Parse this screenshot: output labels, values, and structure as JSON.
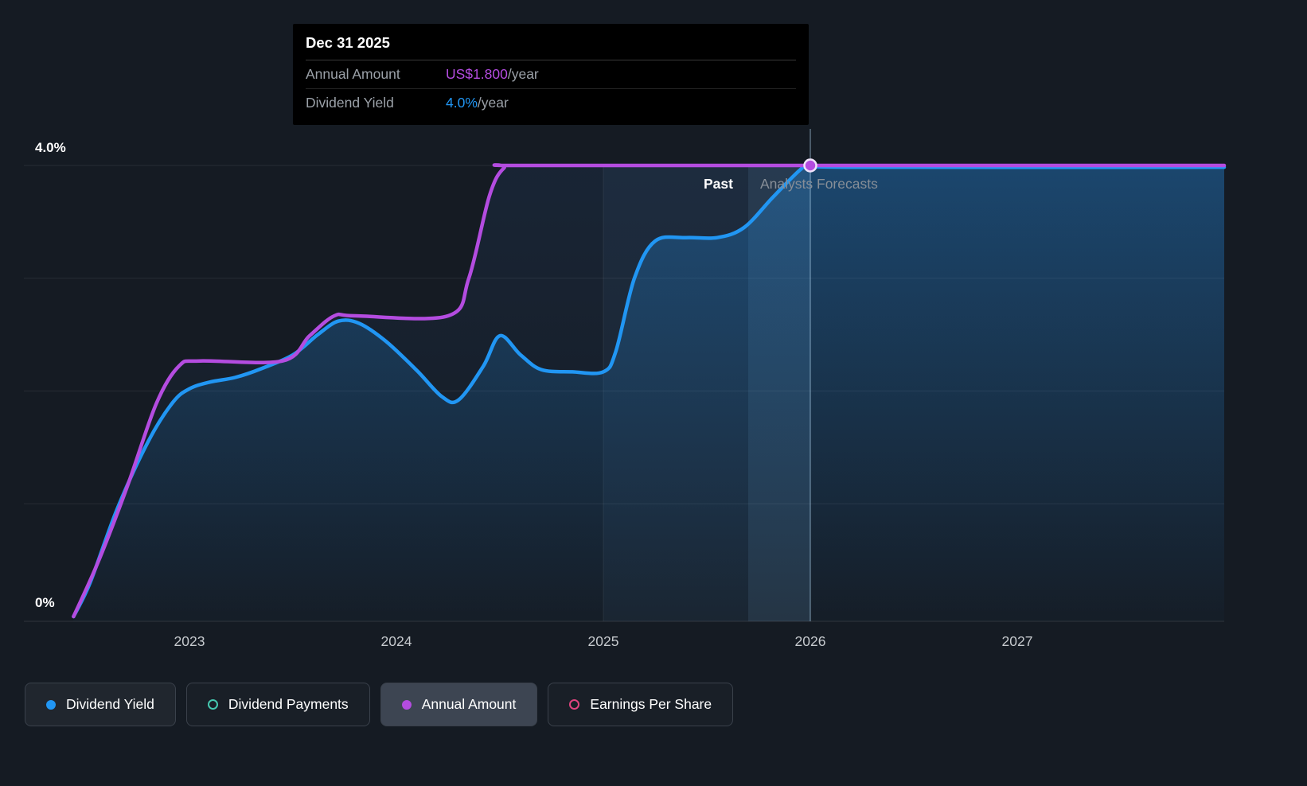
{
  "colors": {
    "background": "#151b23",
    "tooltip_background": "#000000",
    "grid_line": "rgba(255,255,255,0.08)",
    "axis_line": "rgba(255,255,255,0.12)",
    "axis_text": "#c6cace",
    "muted_text": "#878e97",
    "dividend_yield": "#2196f3",
    "annual_amount": "#b44ce0",
    "dividend_payments": "#45c8b0",
    "earnings_per_share": "#e0447f",
    "divider_line": "rgba(180,215,240,0.45)",
    "past_edge_line": "rgba(255,255,255,0.07)",
    "highlight_band": "rgba(120,180,230,0.055)",
    "hover_band": "rgba(140,195,240,0.10)",
    "marker_ring": "#f0e4fa"
  },
  "tooltip": {
    "title": "Dec 31 2025",
    "rows": [
      {
        "label": "Annual Amount",
        "value": "US$1.800",
        "suffix": "/year",
        "color_key": "annual_amount"
      },
      {
        "label": "Dividend Yield",
        "value": "4.0%",
        "suffix": "/year",
        "color_key": "dividend_yield"
      }
    ]
  },
  "annotations": {
    "past_label": "Past",
    "forecast_label": "Analysts Forecasts"
  },
  "axes": {
    "y_top_label": "4.0%",
    "y_bottom_label": "0%",
    "x_ticks": [
      "2023",
      "2024",
      "2025",
      "2026",
      "2027"
    ]
  },
  "legend": {
    "items": [
      {
        "label": "Dividend Yield",
        "marker": "filled",
        "color_key": "dividend_yield",
        "active": true,
        "hovered": false
      },
      {
        "label": "Dividend Payments",
        "marker": "outline",
        "color_key": "dividend_payments",
        "active": false,
        "hovered": false
      },
      {
        "label": "Annual Amount",
        "marker": "filled",
        "color_key": "annual_amount",
        "active": true,
        "hovered": true
      },
      {
        "label": "Earnings Per Share",
        "marker": "outline",
        "color_key": "earnings_per_share",
        "active": false,
        "hovered": false
      }
    ]
  },
  "chart_data": {
    "type": "line",
    "title": "Dividend history and forecast",
    "x_range": [
      2022.2,
      2028.0
    ],
    "x_tick_values": [
      2023,
      2024,
      2025,
      2026,
      2027
    ],
    "y_range_percent": [
      0,
      4.0
    ],
    "grid_percent_lines": [
      1.0,
      2.0,
      3.0,
      4.0
    ],
    "divider_x": 2026.0,
    "highlight_band_x": [
      2025.0,
      2026.0
    ],
    "hover_band_x": [
      2025.7,
      2026.0
    ],
    "marker": {
      "x": 2026.0,
      "y_percent": 4.0,
      "series": "annual_amount"
    },
    "amount_axis_alignment": {
      "amount_value": 1.8,
      "maps_to_percent": 4.0
    },
    "series": [
      {
        "name": "Dividend Yield",
        "key": "dividend_yield",
        "unit": "percent",
        "area_fill": "strong",
        "points": [
          [
            2022.44,
            0.0
          ],
          [
            2022.52,
            0.3
          ],
          [
            2022.65,
            0.95
          ],
          [
            2022.8,
            1.55
          ],
          [
            2022.92,
            1.9
          ],
          [
            2023.0,
            2.02
          ],
          [
            2023.1,
            2.08
          ],
          [
            2023.22,
            2.12
          ],
          [
            2023.35,
            2.2
          ],
          [
            2023.5,
            2.32
          ],
          [
            2023.62,
            2.5
          ],
          [
            2023.72,
            2.62
          ],
          [
            2023.82,
            2.6
          ],
          [
            2023.95,
            2.44
          ],
          [
            2024.1,
            2.18
          ],
          [
            2024.22,
            1.95
          ],
          [
            2024.3,
            1.92
          ],
          [
            2024.42,
            2.22
          ],
          [
            2024.5,
            2.49
          ],
          [
            2024.6,
            2.32
          ],
          [
            2024.7,
            2.19
          ],
          [
            2024.85,
            2.17
          ],
          [
            2025.0,
            2.17
          ],
          [
            2025.06,
            2.35
          ],
          [
            2025.15,
            3.0
          ],
          [
            2025.25,
            3.33
          ],
          [
            2025.4,
            3.36
          ],
          [
            2025.55,
            3.36
          ],
          [
            2025.68,
            3.45
          ],
          [
            2025.82,
            3.72
          ],
          [
            2025.95,
            3.96
          ],
          [
            2026.0,
            4.0
          ],
          [
            2026.2,
            3.985
          ],
          [
            2028.0,
            3.985
          ]
        ]
      },
      {
        "name": "Annual Amount",
        "key": "annual_amount",
        "unit": "usd_per_year",
        "area_fill": "faint",
        "points": [
          [
            2022.44,
            0.0
          ],
          [
            2022.56,
            0.22
          ],
          [
            2022.7,
            0.52
          ],
          [
            2022.84,
            0.85
          ],
          [
            2022.95,
            1.0
          ],
          [
            2023.05,
            1.02
          ],
          [
            2023.45,
            1.02
          ],
          [
            2023.58,
            1.12
          ],
          [
            2023.7,
            1.2
          ],
          [
            2023.8,
            1.2
          ],
          [
            2024.25,
            1.2
          ],
          [
            2024.35,
            1.35
          ],
          [
            2024.45,
            1.68
          ],
          [
            2024.52,
            1.79
          ],
          [
            2024.6,
            1.8
          ],
          [
            2026.0,
            1.8
          ],
          [
            2028.0,
            1.8
          ]
        ]
      }
    ]
  }
}
